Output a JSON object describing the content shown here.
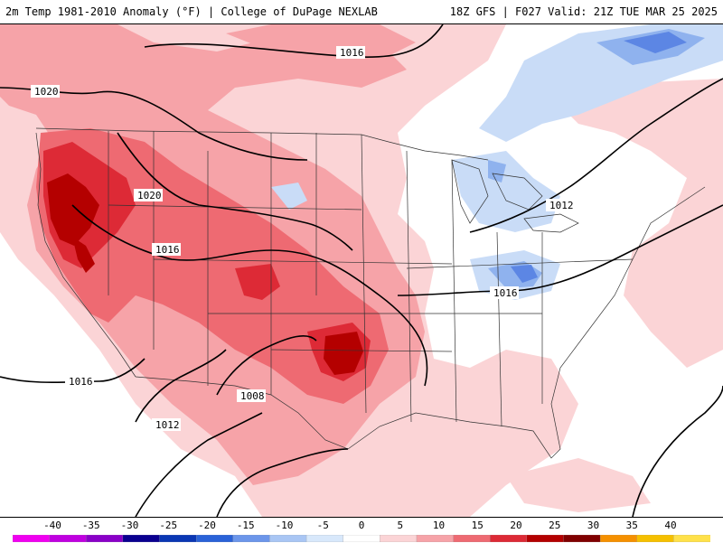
{
  "header": {
    "title_left": "2m Temp 1981-2010 Anomaly (°F) | College of DuPage NEXLAB",
    "title_right": "18Z GFS | F027 Valid: 21Z TUE MAR 25 2025"
  },
  "colors": {
    "warm_light": "#fbd4d6",
    "warm_mid": "#f6a3a8",
    "warm_strong": "#ee6a72",
    "warm_deep": "#dd2a36",
    "warm_extreme": "#b40000",
    "cool_light": "#c9dcf7",
    "cool_mid": "#8fb2ee",
    "cool_strong": "#5c86e4",
    "isobar": "#000000"
  },
  "isobars": [
    {
      "label": "1016",
      "id": "north"
    },
    {
      "label": "1020",
      "id": "northwest"
    },
    {
      "label": "1020",
      "id": "idaho"
    },
    {
      "label": "1016",
      "id": "nevada"
    },
    {
      "label": "1016",
      "id": "pacific"
    },
    {
      "label": "1012",
      "id": "baja"
    },
    {
      "label": "1008",
      "id": "mexico"
    },
    {
      "label": "1012",
      "id": "michigan"
    },
    {
      "label": "1016",
      "id": "ohio-valley"
    }
  ],
  "colorbar": {
    "ticks": [
      "-40",
      "-35",
      "-30",
      "-25",
      "-20",
      "-15",
      "-10",
      "-5",
      "0",
      "5",
      "10",
      "15",
      "20",
      "25",
      "30",
      "35",
      "40"
    ],
    "segments": [
      "#f000f0",
      "#c000e0",
      "#8a00c8",
      "#0a0090",
      "#0a37b4",
      "#2a62d8",
      "#6c96ea",
      "#a9c6f4",
      "#d8e8fb",
      "#ffffff",
      "#fbd4d6",
      "#f6a3a8",
      "#ee6a72",
      "#dd2a36",
      "#b40000",
      "#800000",
      "#f59000",
      "#f5c000",
      "#ffe14a"
    ]
  }
}
